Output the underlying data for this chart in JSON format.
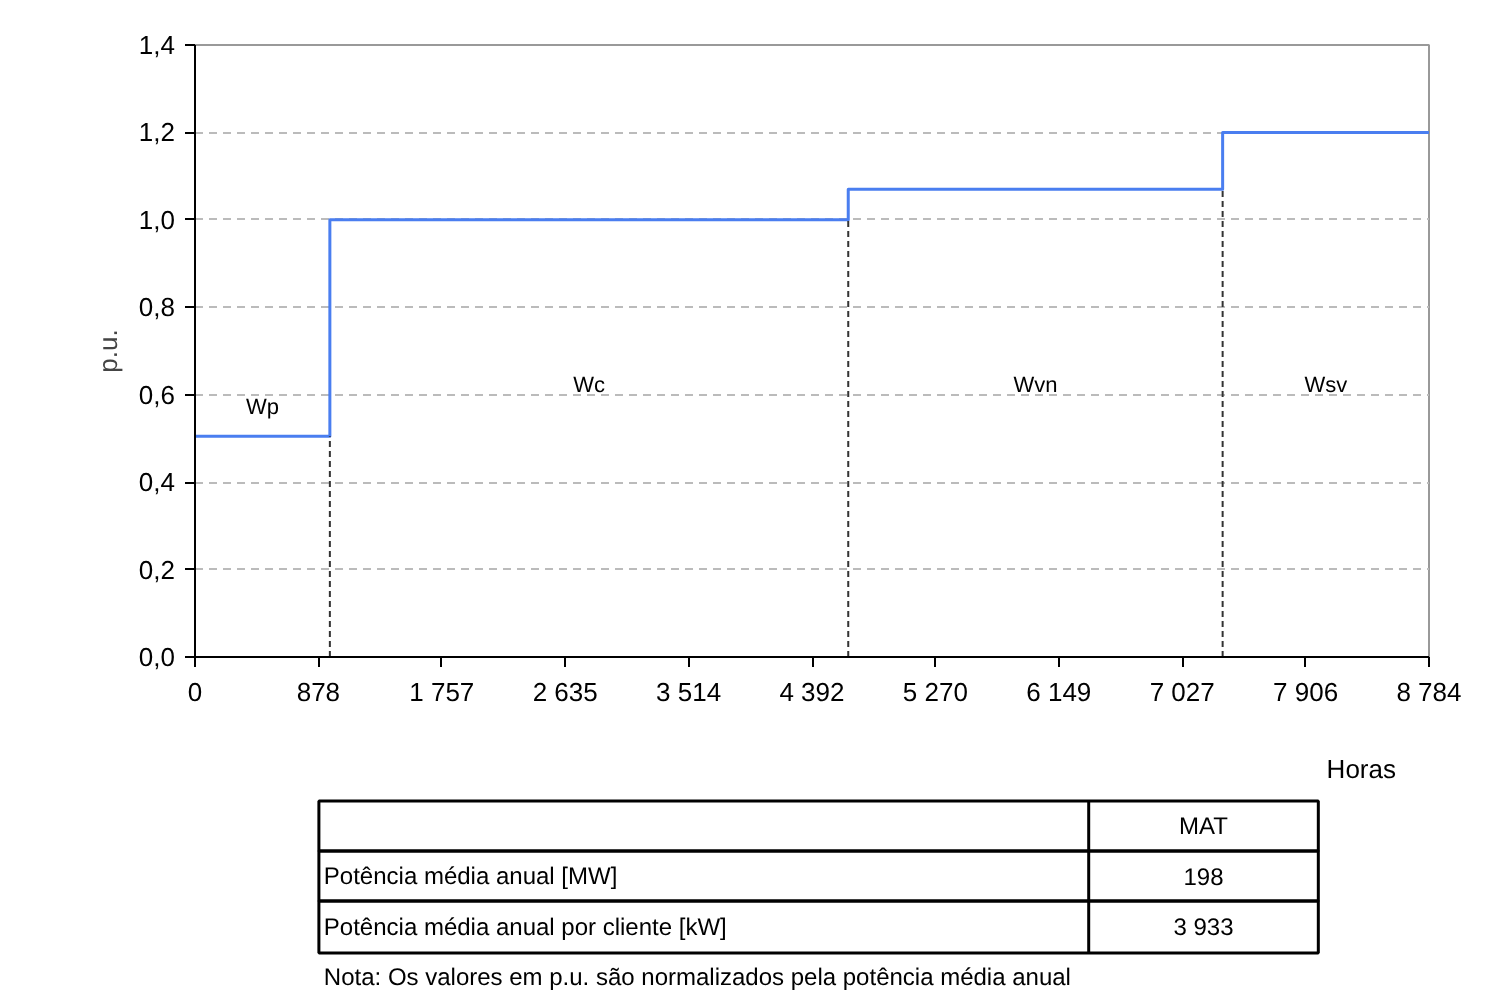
{
  "chart_data": {
    "type": "step",
    "xlabel": "Horas",
    "ylabel": "p.u.",
    "x": [
      0,
      960,
      4650,
      7315,
      8784
    ],
    "series": [
      {
        "color": "#4a7ef0",
        "values": [
          0.505,
          1.0,
          1.07,
          1.2,
          1.2
        ]
      },
      {
        "type": "line",
        "line_style": "dashed",
        "color": "#333333",
        "x": [
          960,
          960
        ],
        "values": [
          0,
          0.505
        ]
      },
      {
        "type": "line",
        "line_style": "dashed",
        "color": "#333333",
        "x": [
          4650,
          4650
        ],
        "values": [
          0,
          1.0
        ]
      },
      {
        "type": "line",
        "line_style": "dashed",
        "color": "#333333",
        "x": [
          7315,
          7315
        ],
        "values": [
          0,
          1.07
        ]
      }
    ],
    "xlim": [
      0,
      8784
    ],
    "ylim": [
      0,
      1.4
    ],
    "xticks": [
      0,
      {
        "value": 878.4,
        "label": "878"
      },
      {
        "value": 1756.8,
        "label": "1 757"
      },
      {
        "value": 2635.2,
        "label": "2 635"
      },
      {
        "value": 3513.6,
        "label": "3 514"
      },
      {
        "value": 4392,
        "label": "4 392"
      },
      {
        "value": 5270.4,
        "label": "5 270"
      },
      {
        "value": 6148.8,
        "label": "6 149"
      },
      {
        "value": 7027.2,
        "label": "7 027"
      },
      {
        "value": 7905.6,
        "label": "7 906"
      },
      {
        "value": 8784,
        "label": "8 784"
      }
    ],
    "yticks": [
      {
        "value": 0,
        "label": "0,0"
      },
      {
        "value": 0.2,
        "label": "0,2"
      },
      {
        "value": 0.4,
        "label": "0,4"
      },
      {
        "value": 0.6,
        "label": "0,6"
      },
      {
        "value": 0.8,
        "label": "0,8"
      },
      {
        "value": 1.0,
        "label": "1,0"
      },
      {
        "value": 1.2,
        "label": "1,2"
      },
      {
        "value": 1.4,
        "label": "1,4"
      }
    ],
    "grid": "y",
    "annotations": [
      "Wp",
      "Wc",
      "Wvn",
      "Wsv",
      "MAT",
      "Potência média anual [MW]",
      "198",
      "Potência média anual por cliente [kW]",
      "3 933",
      "Nota: Os valores em p.u. são normalizados pela potência média anual"
    ]
  }
}
